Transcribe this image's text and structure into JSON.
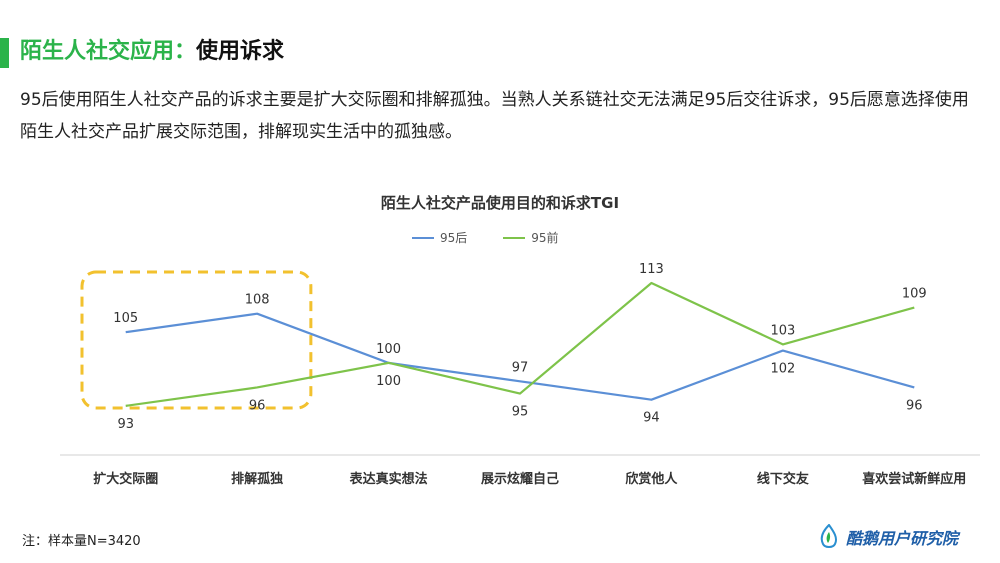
{
  "title": {
    "green": "陌生人社交应用：",
    "dark": "使用诉求"
  },
  "intro": "95后使用陌生人社交产品的诉求主要是扩大交际圈和排解孤独。当熟人关系链社交无法满足95后交往诉求，95后愿意选择使用陌生人社交产品扩展交际范围，排解现实生活中的孤独感。",
  "footnote": "注：样本量N=3420",
  "logo_text": "酷鹅用户研究院",
  "colors": {
    "accent": "#2bb34a",
    "series_95hou": "#5b8fd6",
    "series_95qian": "#7ec34a",
    "highlight": "#f2c12e",
    "logo": "#1f5fa8"
  },
  "chart_data": {
    "type": "line",
    "title": "陌生人社交产品使用目的和诉求TGI",
    "categories": [
      "扩大交际圈",
      "排解孤独",
      "表达真实想法",
      "展示炫耀自己",
      "欣赏他人",
      "线下交友",
      "喜欢尝试新鲜应用"
    ],
    "series": [
      {
        "name": "95后",
        "values": [
          105,
          108,
          100,
          97,
          94,
          102,
          96
        ]
      },
      {
        "name": "95前",
        "values": [
          93,
          96,
          100,
          95,
          113,
          103,
          109
        ]
      }
    ],
    "ylim": [
      85,
      120
    ],
    "legend": "top",
    "grid": false,
    "highlight_categories": [
      "扩大交际圈",
      "排解孤独"
    ]
  }
}
